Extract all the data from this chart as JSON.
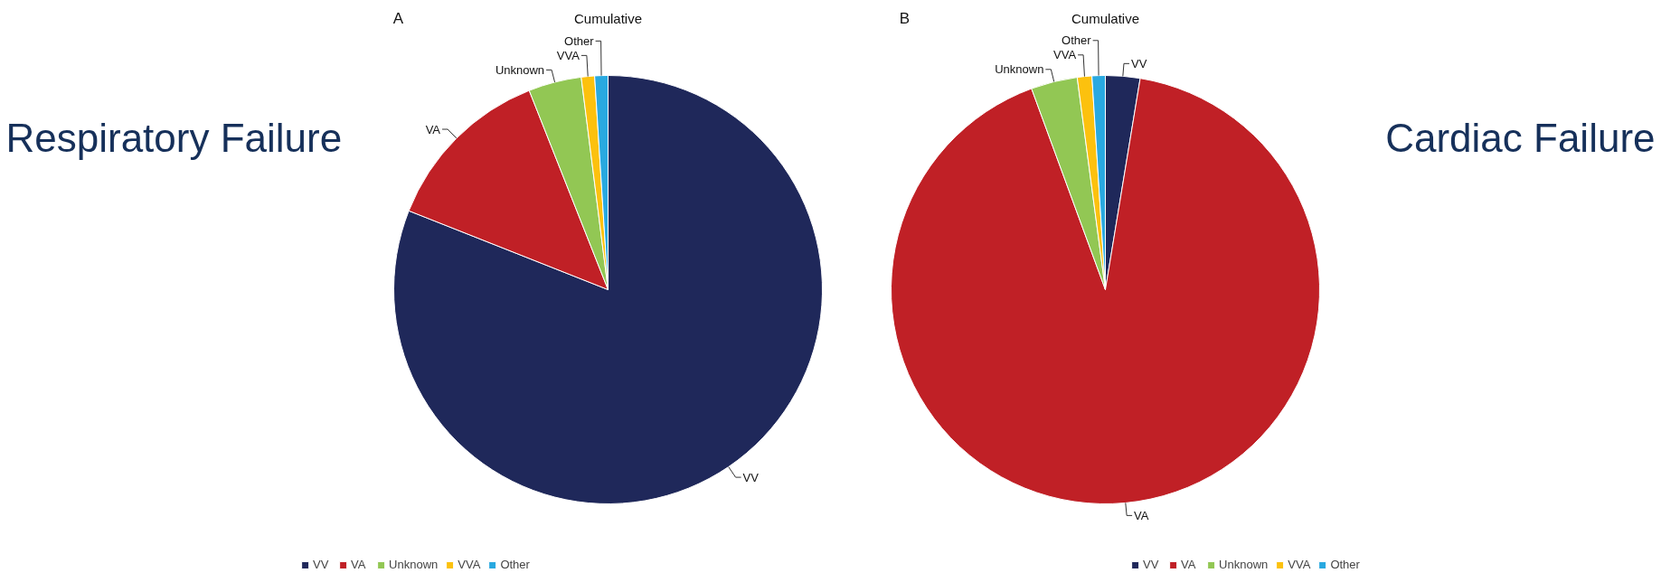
{
  "chart_data": [
    {
      "type": "pie",
      "title": "Cumulative",
      "annotations": [
        "A",
        "Respiratory Failure"
      ],
      "categories": [
        "VV",
        "VA",
        "Unknown",
        "VVA",
        "Other"
      ],
      "values": [
        81,
        13,
        4,
        1,
        1
      ],
      "colors": [
        "#1f285a",
        "#c02026",
        "#92c754",
        "#fcc10e",
        "#29a9e0"
      ],
      "legend": "bottom"
    },
    {
      "type": "pie",
      "title": "Cumulative",
      "annotations": [
        "B",
        "Cardiac Failure"
      ],
      "categories": [
        "VV",
        "VA",
        "Unknown",
        "VVA",
        "Other"
      ],
      "values": [
        2.6,
        91.8,
        3.5,
        1.1,
        1.0
      ],
      "colors": [
        "#1f285a",
        "#c02026",
        "#92c754",
        "#fcc10e",
        "#29a9e0"
      ],
      "legend": "bottom"
    }
  ]
}
